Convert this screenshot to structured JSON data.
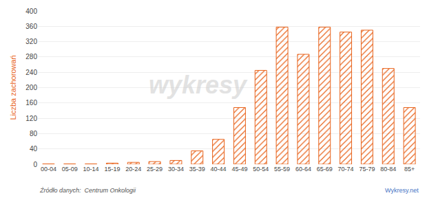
{
  "chart_data": {
    "type": "bar",
    "ylabel": "Liczba zachorowań",
    "categories": [
      "00-04",
      "05-09",
      "10-14",
      "15-19",
      "20-24",
      "25-29",
      "30-34",
      "35-39",
      "40-44",
      "45-49",
      "50-54",
      "55-59",
      "60-64",
      "65-69",
      "70-74",
      "75-79",
      "80-84",
      "85+"
    ],
    "values": [
      1,
      1,
      1,
      3,
      5,
      7,
      10,
      35,
      65,
      148,
      245,
      358,
      287,
      358,
      345,
      350,
      250,
      148
    ],
    "color": "#e8621a",
    "ylim": [
      0,
      400
    ],
    "yticks": [
      0,
      40,
      80,
      120,
      160,
      200,
      240,
      280,
      320,
      360,
      400
    ],
    "grid": true,
    "annotations": [
      "wykresy",
      "Źródło danych:  Centrum Onkologii",
      "Wykresy.net"
    ]
  }
}
